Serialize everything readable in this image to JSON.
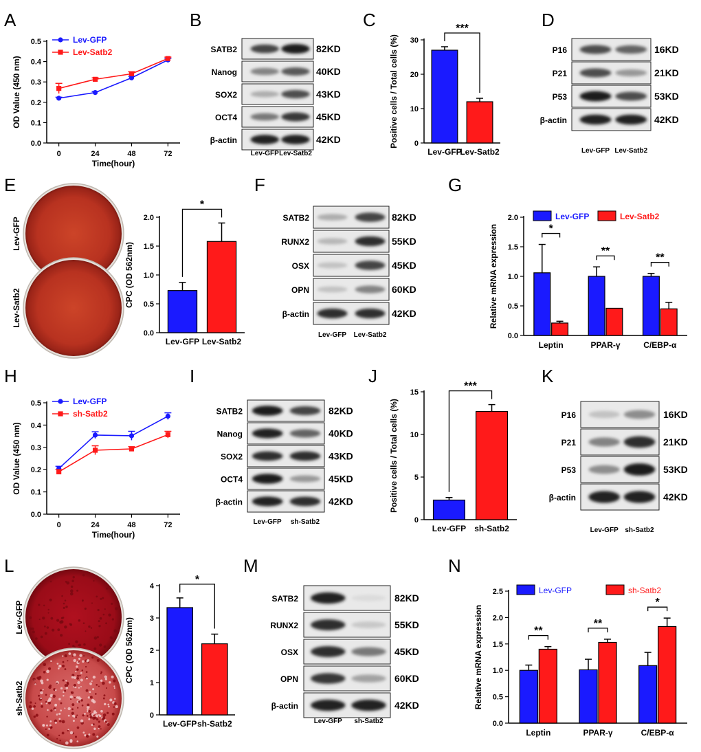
{
  "panel_letters": [
    "A",
    "B",
    "C",
    "D",
    "E",
    "F",
    "G",
    "H",
    "I",
    "J",
    "K",
    "L",
    "M",
    "N"
  ],
  "colors": {
    "blue": "#1a1aff",
    "red": "#ff1a1a",
    "dish": "#b5341c",
    "dish_light": "#c95a3a",
    "dish_dark": "#8d1010"
  },
  "chart_data": [
    {
      "id": "A",
      "type": "line",
      "title": "",
      "xlabel": "Time(hour)",
      "ylabel": "OD Value (450 nm)",
      "x": [
        0,
        24,
        48,
        72
      ],
      "xlim": [
        -8,
        80
      ],
      "ylim": [
        0,
        0.5
      ],
      "yticks": [
        0,
        0.1,
        0.2,
        0.3,
        0.4,
        0.5
      ],
      "ytick_labels": [
        "0.0",
        "0.1",
        "0.2",
        "0.3",
        "0.4",
        "0.5"
      ],
      "series": [
        {
          "name": "Lev-GFP",
          "color": "#1a1aff",
          "marker": "circle",
          "values": [
            0.22,
            0.248,
            0.32,
            0.408
          ],
          "errors": [
            0.005,
            0.005,
            0.008,
            0.008
          ]
        },
        {
          "name": "Lev-Satb2",
          "color": "#ff1a1a",
          "marker": "square",
          "values": [
            0.268,
            0.313,
            0.34,
            0.415
          ],
          "errors": [
            0.025,
            0.007,
            0.01,
            0.007
          ]
        }
      ]
    },
    {
      "id": "C",
      "type": "bar",
      "title": "",
      "xlabel": "",
      "ylabel": "Positive cells / Total cells (%)",
      "categories": [
        "Lev-GFP",
        "Lev-Satb2"
      ],
      "values": [
        27,
        12
      ],
      "errors": [
        1.0,
        1.0
      ],
      "colors": [
        "#1a1aff",
        "#ff1a1a"
      ],
      "ylim": [
        0,
        30
      ],
      "yticks": [
        0,
        10,
        20,
        30
      ],
      "ytick_labels": [
        "0",
        "10",
        "20",
        "30"
      ],
      "significance": [
        {
          "from": 0,
          "to": 1,
          "label": "***"
        }
      ]
    },
    {
      "id": "E",
      "type": "bar",
      "title": "",
      "xlabel": "",
      "ylabel": "CPC (OD 562nm)",
      "categories": [
        "Lev-GFP",
        "Lev-Satb2"
      ],
      "values": [
        0.73,
        1.58
      ],
      "errors": [
        0.14,
        0.32
      ],
      "colors": [
        "#1a1aff",
        "#ff1a1a"
      ],
      "ylim": [
        0,
        2.0
      ],
      "yticks": [
        0,
        0.5,
        1.0,
        1.5,
        2.0
      ],
      "ytick_labels": [
        "0.0",
        "0.5",
        "1.0",
        "1.5",
        "2.0"
      ],
      "significance": [
        {
          "from": 0,
          "to": 1,
          "label": "*"
        }
      ]
    },
    {
      "id": "G",
      "type": "bar",
      "title": "",
      "xlabel": "",
      "ylabel": "Relative mRNA expression",
      "categories": [
        "Leptin",
        "PPAR-γ",
        "C/EBP-α"
      ],
      "series": [
        {
          "name": "Lev-GFP",
          "color": "#1a1aff",
          "values": [
            1.06,
            1.0,
            1.0
          ],
          "errors": [
            0.48,
            0.16,
            0.05
          ]
        },
        {
          "name": "Lev-Satb2",
          "color": "#ff1a1a",
          "values": [
            0.21,
            0.46,
            0.45
          ],
          "errors": [
            0.03,
            0.0,
            0.11
          ]
        }
      ],
      "ylim": [
        0,
        2.0
      ],
      "yticks": [
        0,
        0.5,
        1.0,
        1.5,
        2.0
      ],
      "ytick_labels": [
        "0.0",
        "0.5",
        "1.0",
        "1.5",
        "2.0"
      ],
      "significance": [
        {
          "group": 0,
          "label": "*"
        },
        {
          "group": 1,
          "label": "**"
        },
        {
          "group": 2,
          "label": "**"
        }
      ],
      "legend_position": "top"
    },
    {
      "id": "H",
      "type": "line",
      "title": "",
      "xlabel": "Time(hour)",
      "ylabel": "OD Value (450 nm)",
      "x": [
        0,
        24,
        48,
        72
      ],
      "xlim": [
        -8,
        80
      ],
      "ylim": [
        0,
        0.5
      ],
      "yticks": [
        0,
        0.1,
        0.2,
        0.3,
        0.4,
        0.5
      ],
      "ytick_labels": [
        "0.0",
        "0.1",
        "0.2",
        "0.3",
        "0.4",
        "0.5"
      ],
      "series": [
        {
          "name": "Lev-GFP",
          "color": "#1a1aff",
          "marker": "circle",
          "values": [
            0.205,
            0.355,
            0.352,
            0.44
          ],
          "errors": [
            0.01,
            0.015,
            0.02,
            0.015
          ]
        },
        {
          "name": "sh-Satb2",
          "color": "#ff1a1a",
          "marker": "square",
          "values": [
            0.19,
            0.287,
            0.293,
            0.357
          ],
          "errors": [
            0.01,
            0.02,
            0.01,
            0.015
          ]
        }
      ]
    },
    {
      "id": "J",
      "type": "bar",
      "title": "",
      "xlabel": "",
      "ylabel": "Positive cells / Total cells (%)",
      "categories": [
        "Lev-GFP",
        "sh-Satb2"
      ],
      "values": [
        2.3,
        12.7
      ],
      "errors": [
        0.3,
        0.8
      ],
      "colors": [
        "#1a1aff",
        "#ff1a1a"
      ],
      "ylim": [
        0,
        15
      ],
      "yticks": [
        0,
        5,
        10,
        15
      ],
      "ytick_labels": [
        "0",
        "5",
        "10",
        "15"
      ],
      "significance": [
        {
          "from": 0,
          "to": 1,
          "label": "***"
        }
      ]
    },
    {
      "id": "L",
      "type": "bar",
      "title": "",
      "xlabel": "",
      "ylabel": "CPC (OD 562nm)",
      "categories": [
        "Lev-GFP",
        "sh-Satb2"
      ],
      "values": [
        3.32,
        2.2
      ],
      "errors": [
        0.3,
        0.3
      ],
      "colors": [
        "#1a1aff",
        "#ff1a1a"
      ],
      "ylim": [
        0,
        4
      ],
      "yticks": [
        0,
        1,
        2,
        3,
        4
      ],
      "ytick_labels": [
        "0",
        "1",
        "2",
        "3",
        "4"
      ],
      "significance": [
        {
          "from": 0,
          "to": 1,
          "label": "*"
        }
      ]
    },
    {
      "id": "N",
      "type": "bar",
      "title": "",
      "xlabel": "",
      "ylabel": "Relative mRNA expression",
      "categories": [
        "Leptin",
        "PPAR-γ",
        "C/EBP-α"
      ],
      "series": [
        {
          "name": "Lev-GFP",
          "color": "#1a1aff",
          "values": [
            1.0,
            1.01,
            1.09
          ],
          "errors": [
            0.1,
            0.2,
            0.25
          ]
        },
        {
          "name": "sh-Satb2",
          "color": "#ff1a1a",
          "values": [
            1.4,
            1.53,
            1.83
          ],
          "errors": [
            0.05,
            0.06,
            0.16
          ]
        }
      ],
      "ylim": [
        0,
        2.5
      ],
      "yticks": [
        0,
        0.5,
        1.0,
        1.5,
        2.0,
        2.5
      ],
      "ytick_labels": [
        "0.0",
        "0.5",
        "1.0",
        "1.5",
        "2.0",
        "2.5"
      ],
      "significance": [
        {
          "group": 0,
          "label": "**"
        },
        {
          "group": 1,
          "label": "**"
        },
        {
          "group": 2,
          "label": "*"
        }
      ],
      "legend_position": "top"
    }
  ],
  "blots": [
    {
      "id": "B",
      "rows": [
        {
          "protein": "SATB2",
          "kd": "82KD",
          "lane1": 0.75,
          "lane2": 0.95
        },
        {
          "protein": "Nanog",
          "kd": "40KD",
          "lane1": 0.45,
          "lane2": 0.65
        },
        {
          "protein": "SOX2",
          "kd": "43KD",
          "lane1": 0.25,
          "lane2": 0.7
        },
        {
          "protein": "OCT4",
          "kd": "45KD",
          "lane1": 0.5,
          "lane2": 0.8
        },
        {
          "protein": "β-actin",
          "kd": "42KD",
          "lane1": 0.9,
          "lane2": 0.9
        }
      ],
      "samples": [
        "Lev-GFP",
        "Lev-Satb2"
      ]
    },
    {
      "id": "D",
      "rows": [
        {
          "protein": "P16",
          "kd": "16KD",
          "lane1": 0.7,
          "lane2": 0.6
        },
        {
          "protein": "P21",
          "kd": "21KD",
          "lane1": 0.7,
          "lane2": 0.35
        },
        {
          "protein": "P53",
          "kd": "53KD",
          "lane1": 0.95,
          "lane2": 0.7
        },
        {
          "protein": "β-actin",
          "kd": "42KD",
          "lane1": 0.9,
          "lane2": 0.9
        }
      ],
      "samples": [
        "Lev-GFP",
        "Lev-Satb2"
      ]
    },
    {
      "id": "F",
      "rows": [
        {
          "protein": "SATB2",
          "kd": "82KD",
          "lane1": 0.25,
          "lane2": 0.75
        },
        {
          "protein": "RUNX2",
          "kd": "55KD",
          "lane1": 0.2,
          "lane2": 0.85
        },
        {
          "protein": "OSX",
          "kd": "45KD",
          "lane1": 0.15,
          "lane2": 0.75
        },
        {
          "protein": "OPN",
          "kd": "60KD",
          "lane1": 0.15,
          "lane2": 0.45
        },
        {
          "protein": "β-actin",
          "kd": "42KD",
          "lane1": 0.85,
          "lane2": 0.85
        }
      ],
      "samples": [
        "Lev-GFP",
        "Lev-Satb2"
      ]
    },
    {
      "id": "I",
      "rows": [
        {
          "protein": "SATB2",
          "kd": "82KD",
          "lane1": 0.95,
          "lane2": 0.75
        },
        {
          "protein": "Nanog",
          "kd": "40KD",
          "lane1": 0.9,
          "lane2": 0.6
        },
        {
          "protein": "SOX2",
          "kd": "43KD",
          "lane1": 0.85,
          "lane2": 0.85
        },
        {
          "protein": "OCT4",
          "kd": "45KD",
          "lane1": 0.95,
          "lane2": 0.35
        },
        {
          "protein": "β-actin",
          "kd": "42KD",
          "lane1": 0.9,
          "lane2": 0.85
        }
      ],
      "samples": [
        "Lev-GFP",
        "sh-Satb2"
      ]
    },
    {
      "id": "K",
      "rows": [
        {
          "protein": "P16",
          "kd": "16KD",
          "lane1": 0.15,
          "lane2": 0.4
        },
        {
          "protein": "P21",
          "kd": "21KD",
          "lane1": 0.45,
          "lane2": 0.85
        },
        {
          "protein": "P53",
          "kd": "53KD",
          "lane1": 0.4,
          "lane2": 0.95
        },
        {
          "protein": "β-actin",
          "kd": "42KD",
          "lane1": 0.9,
          "lane2": 0.9
        }
      ],
      "samples": [
        "Lev-GFP",
        "sh-Satb2"
      ]
    },
    {
      "id": "M",
      "rows": [
        {
          "protein": "SATB2",
          "kd": "82KD",
          "lane1": 0.9,
          "lane2": 0.03
        },
        {
          "protein": "RUNX2",
          "kd": "55KD",
          "lane1": 0.85,
          "lane2": 0.12
        },
        {
          "protein": "OSX",
          "kd": "45KD",
          "lane1": 0.85,
          "lane2": 0.5
        },
        {
          "protein": "OPN",
          "kd": "60KD",
          "lane1": 0.8,
          "lane2": 0.3
        },
        {
          "protein": "β-actin",
          "kd": "42KD",
          "lane1": 0.9,
          "lane2": 0.9
        }
      ],
      "samples": [
        "Lev-GFP",
        "sh-Satb2"
      ]
    }
  ],
  "dishes": [
    {
      "id": "E",
      "labels": [
        "Lev-GFP",
        "Lev-Satb2"
      ],
      "styles": [
        "smooth",
        "smooth"
      ]
    },
    {
      "id": "L",
      "labels": [
        "Lev-GFP",
        "sh-Satb2"
      ],
      "styles": [
        "dense",
        "speckled"
      ]
    }
  ]
}
